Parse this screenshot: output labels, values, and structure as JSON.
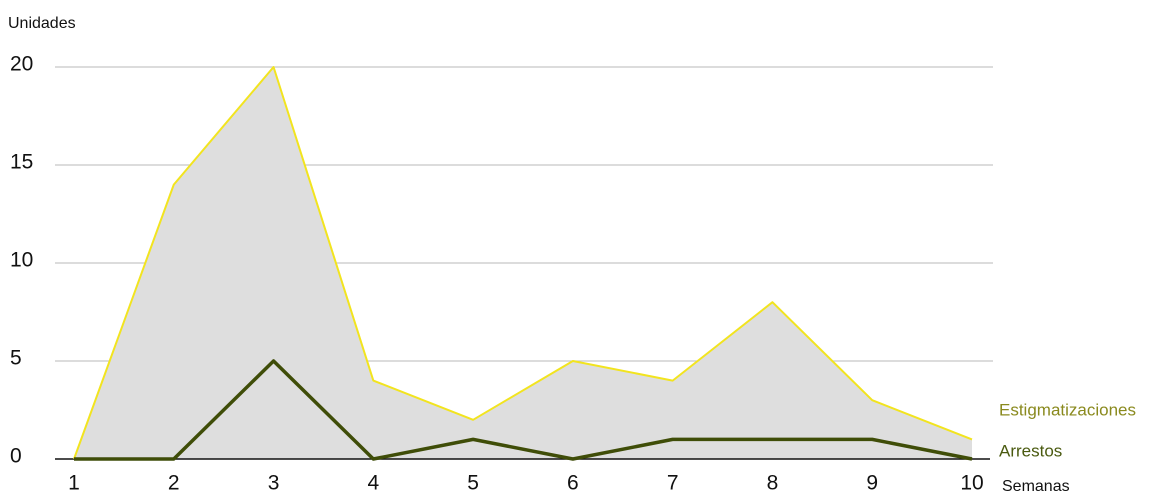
{
  "chart_data": {
    "type": "line",
    "y_label": "Unidades",
    "x_label": "Semanas",
    "x": [
      1,
      2,
      3,
      4,
      5,
      6,
      7,
      8,
      9,
      10
    ],
    "xlim": [
      1,
      10
    ],
    "xticks": [
      1,
      2,
      3,
      4,
      5,
      6,
      7,
      8,
      9,
      10
    ],
    "ylim": [
      0,
      20
    ],
    "yticks": [
      0,
      5,
      10,
      15,
      20
    ],
    "grid": true,
    "series": [
      {
        "name": "Estigmatizaciones",
        "color": "#f2e41f",
        "fill": "#dedede",
        "label_color": "#8a8a1e",
        "values": [
          0,
          14,
          20,
          4,
          2,
          5,
          4,
          8,
          3,
          1
        ]
      },
      {
        "name": "Arrestos",
        "color": "#3f4d08",
        "label_color": "#4a5a10",
        "values": [
          0,
          0,
          5,
          0,
          1,
          0,
          1,
          1,
          1,
          0
        ]
      }
    ]
  }
}
